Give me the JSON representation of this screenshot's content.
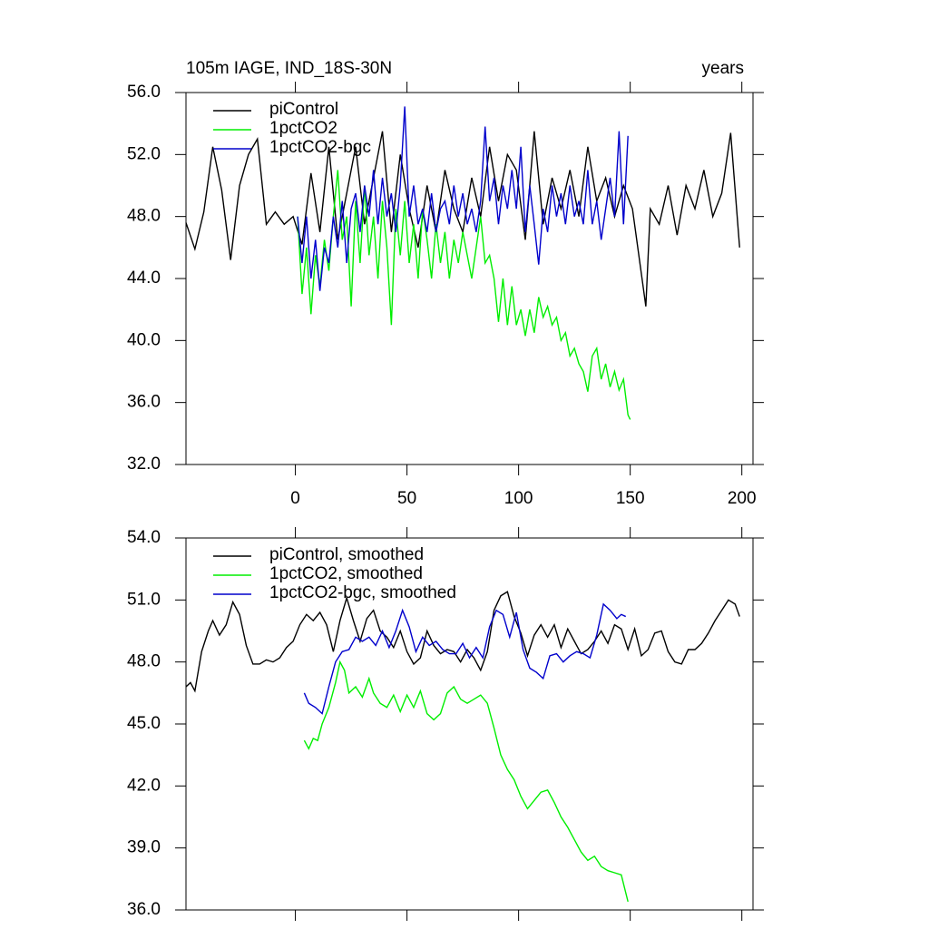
{
  "chart_data": [
    {
      "type": "line",
      "title": "105m IAGE, IND_18S-30N",
      "right_title": "years",
      "legend": "upper left",
      "xlim": [
        -49,
        205
      ],
      "xticks": [
        0,
        50,
        100,
        150,
        200
      ],
      "ylim": [
        32,
        56
      ],
      "yticks": [
        {
          "value": 32,
          "label": "32.0"
        },
        {
          "value": 36,
          "label": "36.0"
        },
        {
          "value": 40,
          "label": "40.0"
        },
        {
          "value": 44,
          "label": "44.0"
        },
        {
          "value": 48,
          "label": "48.0"
        },
        {
          "value": 52,
          "label": "52.0"
        },
        {
          "value": 56,
          "label": "56.0"
        }
      ],
      "series": [
        {
          "name": "piControl",
          "color": "#000000",
          "x": [
            -49,
            -45,
            -41,
            -37,
            -33,
            -29,
            -25,
            -21,
            -17,
            -13,
            -9,
            -5,
            -1,
            3,
            7,
            11,
            15,
            19,
            23,
            27,
            31,
            35,
            39,
            43,
            47,
            51,
            55,
            59,
            63,
            67,
            71,
            75,
            79,
            83,
            87,
            91,
            95,
            99,
            103,
            107,
            111,
            115,
            119,
            123,
            127,
            131,
            135,
            139,
            143,
            147,
            151,
            157,
            159,
            163,
            167,
            171,
            175,
            179,
            183,
            187,
            191,
            195,
            199
          ],
          "values": [
            47.6,
            45.9,
            48.3,
            52.5,
            49.7,
            45.2,
            50.0,
            52.0,
            53.0,
            47.5,
            48.3,
            47.5,
            48.0,
            46.2,
            50.8,
            47.0,
            52.5,
            46.5,
            49.5,
            52.5,
            47.5,
            50.5,
            53.5,
            47.0,
            52.0,
            48.5,
            46.0,
            50.0,
            47.0,
            51.0,
            48.5,
            47.0,
            50.5,
            48.0,
            52.5,
            49.0,
            52.0,
            51.0,
            46.5,
            53.5,
            47.5,
            50.5,
            48.5,
            51.0,
            48.0,
            52.5,
            49.0,
            50.5,
            48.0,
            50.0,
            48.5,
            42.2,
            48.5,
            47.5,
            50.0,
            46.8,
            50.0,
            48.5,
            51.0,
            48.0,
            49.5,
            53.4,
            46.0
          ]
        },
        {
          "name": "1pctCO2",
          "color": "#00ee00",
          "x": [
            1,
            3,
            5,
            7,
            9,
            11,
            13,
            15,
            17,
            19,
            21,
            23,
            25,
            27,
            29,
            31,
            33,
            35,
            37,
            39,
            41,
            43,
            45,
            47,
            49,
            51,
            53,
            55,
            57,
            59,
            61,
            63,
            65,
            67,
            69,
            71,
            73,
            75,
            77,
            79,
            81,
            83,
            85,
            87,
            89,
            91,
            93,
            95,
            97,
            99,
            101,
            103,
            105,
            107,
            109,
            111,
            113,
            115,
            117,
            119,
            121,
            123,
            125,
            127,
            129,
            131,
            133,
            135,
            137,
            139,
            141,
            143,
            145,
            147,
            149,
            150
          ],
          "values": [
            48,
            43,
            46,
            41.7,
            45.5,
            43.5,
            46.5,
            44.5,
            48,
            51,
            46.5,
            48,
            42.2,
            49,
            45,
            50,
            45.5,
            48,
            44,
            49,
            46,
            41,
            48.5,
            45.5,
            49,
            45,
            47.5,
            44,
            48.5,
            46.5,
            44,
            47.5,
            45,
            47,
            44,
            46.5,
            45,
            47,
            45.5,
            44,
            46,
            48,
            45,
            45.5,
            44,
            41.2,
            44,
            41,
            43.5,
            41,
            42,
            40.3,
            42,
            40.5,
            42.8,
            41.5,
            42.2,
            41,
            41.5,
            40,
            40.5,
            39,
            39.5,
            38.5,
            38,
            36.7,
            39,
            39.5,
            37.5,
            38.5,
            37,
            38,
            36.8,
            37.5,
            35.2,
            34.9
          ]
        },
        {
          "name": "1pctCO2-bgc",
          "color": "#0000cc",
          "x": [
            1,
            3,
            5,
            7,
            9,
            11,
            13,
            15,
            17,
            19,
            21,
            23,
            25,
            27,
            29,
            31,
            33,
            35,
            37,
            39,
            41,
            43,
            45,
            47,
            49,
            51,
            53,
            55,
            57,
            59,
            61,
            63,
            65,
            67,
            69,
            71,
            73,
            75,
            77,
            79,
            81,
            83,
            85,
            87,
            89,
            91,
            93,
            95,
            97,
            99,
            101,
            103,
            105,
            107,
            109,
            111,
            113,
            115,
            117,
            119,
            121,
            123,
            125,
            127,
            129,
            131,
            133,
            135,
            137,
            139,
            141,
            143,
            145,
            147,
            149
          ],
          "values": [
            48,
            45,
            48,
            44,
            46.5,
            43.2,
            46,
            45,
            48,
            46,
            49,
            45,
            48.5,
            49.5,
            47,
            50,
            48,
            51,
            47.5,
            50.5,
            48,
            49.5,
            47,
            50,
            55.1,
            48,
            50,
            47.5,
            48.5,
            47,
            49.5,
            47,
            48.5,
            49,
            47.5,
            50,
            48,
            49.5,
            47.5,
            48.5,
            47,
            49,
            53.8,
            49,
            50.5,
            47.5,
            50,
            48.5,
            51,
            48.5,
            52.5,
            47,
            50,
            47.5,
            44.9,
            48.5,
            47,
            50,
            48,
            49.5,
            47.5,
            50,
            48,
            49,
            47.5,
            51,
            47.5,
            49,
            46.5,
            48.5,
            50.5,
            48,
            53.5,
            47.5,
            53.2
          ]
        }
      ]
    },
    {
      "type": "line",
      "legend": "upper left",
      "xlim": [
        -49,
        205
      ],
      "xticks": [
        0,
        50,
        100,
        150,
        200
      ],
      "ylim": [
        36,
        54
      ],
      "yticks": [
        {
          "value": 36,
          "label": "36.0"
        },
        {
          "value": 39,
          "label": "39.0"
        },
        {
          "value": 42,
          "label": "42.0"
        },
        {
          "value": 45,
          "label": "45.0"
        },
        {
          "value": 48,
          "label": "48.0"
        },
        {
          "value": 51,
          "label": "51.0"
        },
        {
          "value": 54,
          "label": "54.0"
        }
      ],
      "series": [
        {
          "name": "piControl, smoothed",
          "color": "#000000",
          "x": [
            -49,
            -47,
            -45,
            -42,
            -39,
            -37,
            -34,
            -31,
            -28,
            -25,
            -22,
            -19,
            -16,
            -13,
            -10,
            -7,
            -4,
            -1,
            2,
            5,
            8,
            11,
            14,
            17,
            20,
            23,
            26,
            29,
            32,
            35,
            38,
            41,
            44,
            47,
            50,
            53,
            56,
            59,
            62,
            65,
            68,
            71,
            74,
            77,
            80,
            83,
            86,
            89,
            92,
            95,
            98,
            101,
            104,
            107,
            110,
            113,
            116,
            119,
            122,
            125,
            128,
            131,
            134,
            137,
            140,
            143,
            146,
            149,
            152,
            155,
            158,
            161,
            164,
            167,
            170,
            173,
            176,
            179,
            182,
            185,
            188,
            191,
            194,
            197,
            199
          ],
          "values": [
            46.8,
            47.0,
            46.6,
            48.5,
            49.5,
            50,
            49.3,
            49.8,
            50.9,
            50.3,
            48.8,
            47.9,
            47.9,
            48.1,
            48,
            48.2,
            48.7,
            49,
            49.8,
            50.3,
            50.0,
            50.4,
            49.8,
            48.5,
            50,
            51.1,
            50,
            49,
            50.1,
            50.5,
            49.5,
            49.2,
            48.7,
            49.5,
            48.5,
            47.9,
            48.2,
            49.5,
            48.8,
            48.4,
            48.6,
            48.5,
            48.0,
            48.6,
            48.2,
            47.6,
            48.5,
            50.5,
            51.2,
            51.4,
            50.2,
            49.4,
            48.3,
            49.3,
            49.8,
            49.2,
            49.8,
            48.7,
            49.6,
            49.0,
            48.4,
            48.6,
            49.0,
            49.5,
            48.9,
            49.8,
            49.6,
            48.6,
            49.6,
            48.3,
            48.6,
            49.4,
            49.5,
            48.5,
            48.0,
            47.9,
            48.6,
            48.6,
            48.9,
            49.4,
            50.0,
            50.5,
            51.0,
            50.8,
            50.2
          ]
        },
        {
          "name": "1pctCO2, smoothed",
          "color": "#00ee00",
          "x": [
            4,
            6,
            8,
            10,
            12,
            15,
            18,
            20,
            22,
            24,
            27,
            30,
            33,
            35,
            38,
            41,
            44,
            47,
            50,
            53,
            56,
            59,
            62,
            65,
            68,
            71,
            74,
            77,
            80,
            83,
            86,
            89,
            92,
            95,
            98,
            101,
            104,
            107,
            110,
            113,
            116,
            119,
            122,
            125,
            128,
            131,
            134,
            137,
            140,
            143,
            146,
            149
          ],
          "values": [
            44.2,
            43.8,
            44.3,
            44.2,
            45,
            45.8,
            47,
            48,
            47.6,
            46.5,
            46.8,
            46.3,
            47.2,
            46.5,
            46,
            45.8,
            46.4,
            45.6,
            46.4,
            45.8,
            46.6,
            45.5,
            45.2,
            45.5,
            46.5,
            46.8,
            46.2,
            46,
            46.2,
            46.4,
            46.0,
            44.8,
            43.5,
            42.8,
            42.3,
            41.5,
            40.9,
            41.3,
            41.7,
            41.8,
            41.2,
            40.5,
            40.0,
            39.4,
            38.8,
            38.4,
            38.6,
            38.1,
            37.9,
            37.8,
            37.7,
            36.4
          ]
        },
        {
          "name": "1pctCO2-bgc, smoothed",
          "color": "#0000cc",
          "x": [
            4,
            6,
            9,
            12,
            15,
            18,
            21,
            24,
            27,
            30,
            33,
            36,
            39,
            42,
            45,
            48,
            51,
            54,
            57,
            60,
            63,
            66,
            69,
            72,
            75,
            78,
            81,
            84,
            87,
            90,
            93,
            96,
            99,
            102,
            105,
            108,
            111,
            114,
            117,
            120,
            123,
            126,
            129,
            132,
            135,
            138,
            141,
            144,
            146,
            148
          ],
          "values": [
            46.5,
            46,
            45.8,
            45.5,
            46.8,
            48,
            48.5,
            48.6,
            49.2,
            49,
            49.2,
            48.8,
            49.5,
            48.7,
            49.5,
            50.5,
            49.7,
            48.5,
            49.2,
            48.8,
            49.0,
            48.6,
            48.4,
            48.4,
            48.9,
            48.2,
            48.7,
            48.2,
            49.7,
            50.5,
            50.3,
            49.2,
            50.4,
            48.6,
            47.7,
            47.5,
            47.2,
            48.3,
            48.4,
            48.0,
            48.3,
            48.5,
            48.4,
            48.2,
            49.3,
            50.8,
            50.5,
            50.1,
            50.3,
            50.2
          ]
        }
      ]
    }
  ]
}
